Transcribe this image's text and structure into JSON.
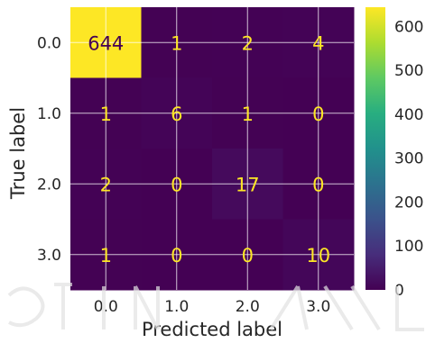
{
  "chart_data": {
    "type": "heatmap",
    "x_categories": [
      "0.0",
      "1.0",
      "2.0",
      "3.0"
    ],
    "y_categories": [
      "0.0",
      "1.0",
      "2.0",
      "3.0"
    ],
    "matrix": [
      [
        644,
        1,
        2,
        4
      ],
      [
        1,
        6,
        1,
        0
      ],
      [
        2,
        0,
        17,
        0
      ],
      [
        1,
        0,
        0,
        10
      ]
    ],
    "xlabel": "Predicted label",
    "ylabel": "True label",
    "colormap": "viridis",
    "color_range": [
      0,
      644
    ],
    "colorbar_ticks": [
      0,
      100,
      200,
      300,
      400,
      500,
      600
    ],
    "colors": {
      "low": "#440154",
      "high": "#fde725",
      "text_on_dark": "#fde725",
      "text_on_light": "#440154",
      "grid": "#ffffff"
    },
    "grid": true
  }
}
